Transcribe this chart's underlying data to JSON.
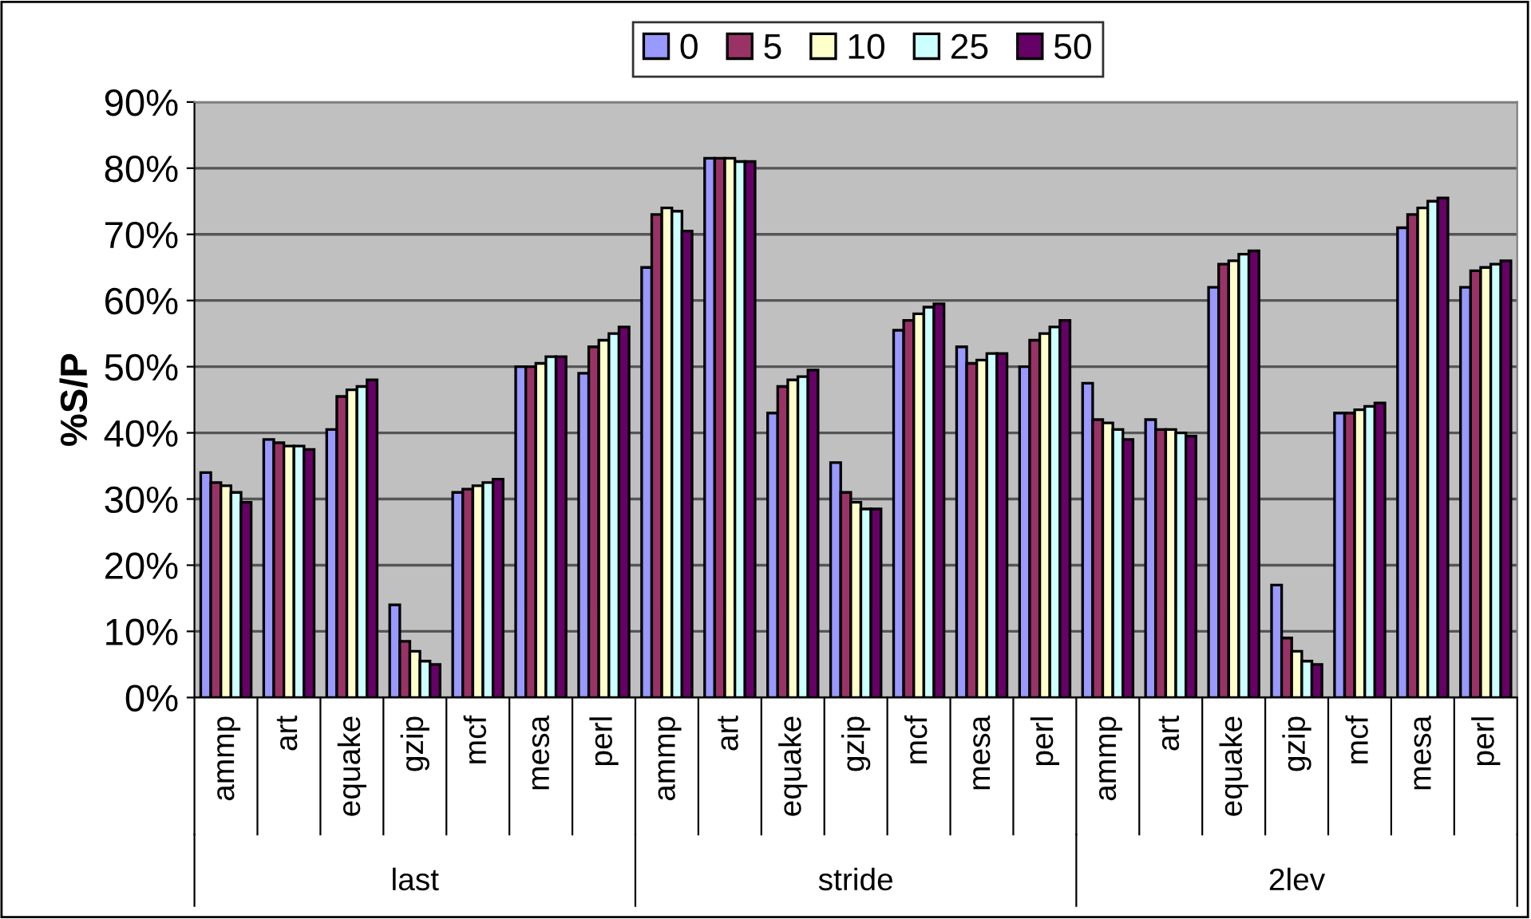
{
  "chart_data": {
    "type": "bar",
    "ylabel": "%S/P",
    "categories": [
      "ammp",
      "art",
      "equake",
      "gzip",
      "mcf",
      "mesa",
      "perl",
      "ammp",
      "art",
      "equake",
      "gzip",
      "mcf",
      "mesa",
      "perl",
      "ammp",
      "art",
      "equake",
      "gzip",
      "mcf",
      "mesa",
      "perl"
    ],
    "series": [
      {
        "name": "0",
        "color": "#9999ff",
        "values": [
          34,
          39,
          40.5,
          14,
          31,
          50,
          49,
          65,
          81.5,
          43,
          35.5,
          55.5,
          53,
          50,
          47.5,
          42,
          62,
          17,
          43,
          71,
          62
        ]
      },
      {
        "name": "5",
        "color": "#993366",
        "values": [
          32.5,
          38.5,
          45.5,
          8.5,
          31.5,
          50,
          53,
          73,
          81.5,
          47,
          31,
          57,
          50.5,
          54,
          42,
          40.5,
          65.5,
          9,
          43,
          73,
          64.5
        ]
      },
      {
        "name": "10",
        "color": "#ffffcc",
        "values": [
          32,
          38,
          46.5,
          7,
          32,
          50.5,
          54,
          74,
          81.5,
          48,
          29.5,
          58,
          51,
          55,
          41.5,
          40.5,
          66,
          7,
          43.5,
          74,
          65
        ]
      },
      {
        "name": "25",
        "color": "#ccffff",
        "values": [
          31,
          38,
          47,
          5.5,
          32.5,
          51.5,
          55,
          73.5,
          81,
          48.5,
          28.5,
          59,
          52,
          56,
          40.5,
          40,
          67,
          5.5,
          44,
          75,
          65.5
        ]
      },
      {
        "name": "50",
        "color": "#660066",
        "values": [
          29.5,
          37.5,
          48,
          5,
          33,
          51.5,
          56,
          70.5,
          81,
          49.5,
          28.5,
          59.5,
          52,
          57,
          39,
          39.5,
          67.5,
          5,
          44.5,
          75.5,
          66
        ]
      }
    ],
    "ylim": [
      0,
      90
    ],
    "yticks": [
      {
        "value": 0,
        "label": "0%"
      },
      {
        "value": 10,
        "label": "10%"
      },
      {
        "value": 20,
        "label": "20%"
      },
      {
        "value": 30,
        "label": "30%"
      },
      {
        "value": 40,
        "label": "40%"
      },
      {
        "value": 50,
        "label": "50%"
      },
      {
        "value": 60,
        "label": "60%"
      },
      {
        "value": 70,
        "label": "70%"
      },
      {
        "value": 80,
        "label": "80%"
      },
      {
        "value": 90,
        "label": "90%"
      }
    ],
    "annotations": [
      "last",
      "stride",
      "2lev"
    ],
    "grid": "y",
    "legend": "top"
  }
}
